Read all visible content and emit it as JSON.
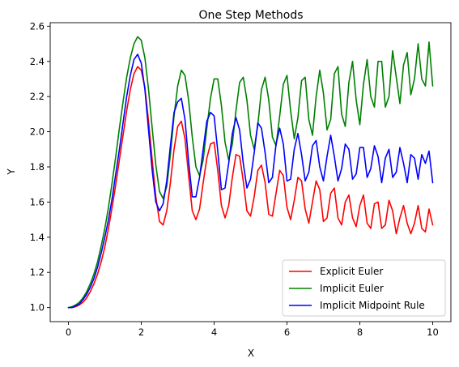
{
  "chart_data": {
    "type": "line",
    "title": "One Step Methods",
    "xlabel": "X",
    "ylabel": "Y",
    "xlim": [
      -0.5,
      10.5
    ],
    "ylim": [
      0.92,
      2.62
    ],
    "xticks": [
      0,
      2,
      4,
      6,
      8,
      10
    ],
    "xtick_labels": [
      "0",
      "2",
      "4",
      "6",
      "8",
      "10"
    ],
    "yticks": [
      1.0,
      1.2,
      1.4,
      1.6,
      1.8,
      2.0,
      2.2,
      2.4,
      2.6
    ],
    "ytick_labels": [
      "1.0",
      "1.2",
      "1.4",
      "1.6",
      "1.8",
      "2.0",
      "2.2",
      "2.4",
      "2.6"
    ],
    "grid": false,
    "legend_position": "bottom-right",
    "x": [
      0.0,
      0.1,
      0.2,
      0.3,
      0.4,
      0.5,
      0.6,
      0.7,
      0.8,
      0.9,
      1.0,
      1.1,
      1.2,
      1.3,
      1.4,
      1.5,
      1.6,
      1.7,
      1.8,
      1.9,
      2.0,
      2.1,
      2.2,
      2.3,
      2.4,
      2.5,
      2.6,
      2.7,
      2.8,
      2.9,
      3.0,
      3.1,
      3.2,
      3.3,
      3.4,
      3.5,
      3.6,
      3.7,
      3.8,
      3.9,
      4.0,
      4.1,
      4.2,
      4.3,
      4.4,
      4.5,
      4.6,
      4.7,
      4.8,
      4.9,
      5.0,
      5.1,
      5.2,
      5.3,
      5.4,
      5.5,
      5.6,
      5.7,
      5.8,
      5.9,
      6.0,
      6.1,
      6.2,
      6.3,
      6.4,
      6.5,
      6.6,
      6.7,
      6.8,
      6.9,
      7.0,
      7.1,
      7.2,
      7.3,
      7.4,
      7.5,
      7.6,
      7.7,
      7.8,
      7.9,
      8.0,
      8.1,
      8.2,
      8.3,
      8.4,
      8.5,
      8.6,
      8.7,
      8.8,
      8.9,
      9.0,
      9.1,
      9.2,
      9.3,
      9.4,
      9.5,
      9.6,
      9.7,
      9.8,
      9.9,
      10.0
    ],
    "series": [
      {
        "name": "Explicit Euler",
        "color": "#ff0000",
        "values": [
          1.0,
          1.0,
          1.005,
          1.015,
          1.03,
          1.055,
          1.09,
          1.135,
          1.19,
          1.26,
          1.345,
          1.45,
          1.57,
          1.7,
          1.84,
          1.98,
          2.12,
          2.24,
          2.33,
          2.37,
          2.35,
          2.25,
          2.06,
          1.84,
          1.63,
          1.49,
          1.47,
          1.55,
          1.71,
          1.9,
          2.03,
          2.06,
          1.96,
          1.75,
          1.55,
          1.5,
          1.56,
          1.71,
          1.85,
          1.93,
          1.94,
          1.78,
          1.58,
          1.51,
          1.58,
          1.74,
          1.87,
          1.86,
          1.72,
          1.55,
          1.52,
          1.63,
          1.78,
          1.81,
          1.71,
          1.53,
          1.52,
          1.65,
          1.78,
          1.75,
          1.57,
          1.5,
          1.61,
          1.74,
          1.72,
          1.56,
          1.48,
          1.6,
          1.72,
          1.67,
          1.49,
          1.51,
          1.65,
          1.68,
          1.51,
          1.47,
          1.6,
          1.64,
          1.51,
          1.46,
          1.58,
          1.64,
          1.48,
          1.45,
          1.59,
          1.6,
          1.45,
          1.47,
          1.61,
          1.55,
          1.42,
          1.51,
          1.58,
          1.48,
          1.42,
          1.48,
          1.58,
          1.45,
          1.43,
          1.56,
          1.47
        ]
      },
      {
        "name": "Implicit Euler",
        "color": "#008000",
        "values": [
          1.0,
          1.005,
          1.015,
          1.03,
          1.055,
          1.09,
          1.135,
          1.19,
          1.26,
          1.35,
          1.45,
          1.57,
          1.71,
          1.86,
          2.02,
          2.17,
          2.31,
          2.42,
          2.5,
          2.54,
          2.52,
          2.42,
          2.24,
          2.02,
          1.81,
          1.66,
          1.62,
          1.69,
          1.87,
          2.09,
          2.26,
          2.35,
          2.32,
          2.18,
          1.97,
          1.8,
          1.75,
          1.84,
          2.02,
          2.19,
          2.3,
          2.3,
          2.15,
          1.94,
          1.84,
          1.93,
          2.12,
          2.28,
          2.31,
          2.18,
          1.98,
          1.9,
          2.04,
          2.24,
          2.31,
          2.18,
          1.97,
          1.92,
          2.09,
          2.27,
          2.32,
          2.12,
          1.96,
          2.08,
          2.29,
          2.31,
          2.07,
          1.98,
          2.2,
          2.35,
          2.22,
          2.01,
          2.07,
          2.33,
          2.37,
          2.1,
          2.03,
          2.28,
          2.4,
          2.18,
          2.04,
          2.27,
          2.41,
          2.2,
          2.14,
          2.4,
          2.4,
          2.14,
          2.2,
          2.46,
          2.31,
          2.16,
          2.38,
          2.45,
          2.21,
          2.3,
          2.5,
          2.3,
          2.26,
          2.51,
          2.26
        ]
      },
      {
        "name": "Implicit Midpoint Rule",
        "color": "#0000ff",
        "values": [
          1.0,
          1.0,
          1.01,
          1.02,
          1.045,
          1.075,
          1.115,
          1.165,
          1.23,
          1.31,
          1.4,
          1.5,
          1.62,
          1.76,
          1.9,
          2.05,
          2.2,
          2.32,
          2.41,
          2.44,
          2.39,
          2.24,
          2.01,
          1.78,
          1.6,
          1.55,
          1.59,
          1.72,
          1.92,
          2.11,
          2.17,
          2.19,
          2.07,
          1.83,
          1.63,
          1.63,
          1.74,
          1.9,
          2.06,
          2.11,
          2.09,
          1.89,
          1.67,
          1.68,
          1.82,
          1.99,
          2.08,
          2.01,
          1.82,
          1.68,
          1.73,
          1.88,
          2.05,
          2.02,
          1.88,
          1.71,
          1.74,
          1.93,
          2.02,
          1.93,
          1.72,
          1.73,
          1.9,
          1.99,
          1.87,
          1.72,
          1.77,
          1.92,
          1.95,
          1.8,
          1.72,
          1.86,
          1.98,
          1.86,
          1.72,
          1.79,
          1.93,
          1.9,
          1.73,
          1.76,
          1.91,
          1.91,
          1.74,
          1.79,
          1.92,
          1.86,
          1.71,
          1.85,
          1.9,
          1.74,
          1.77,
          1.91,
          1.82,
          1.71,
          1.87,
          1.85,
          1.73,
          1.87,
          1.82,
          1.89,
          1.71
        ]
      }
    ]
  }
}
